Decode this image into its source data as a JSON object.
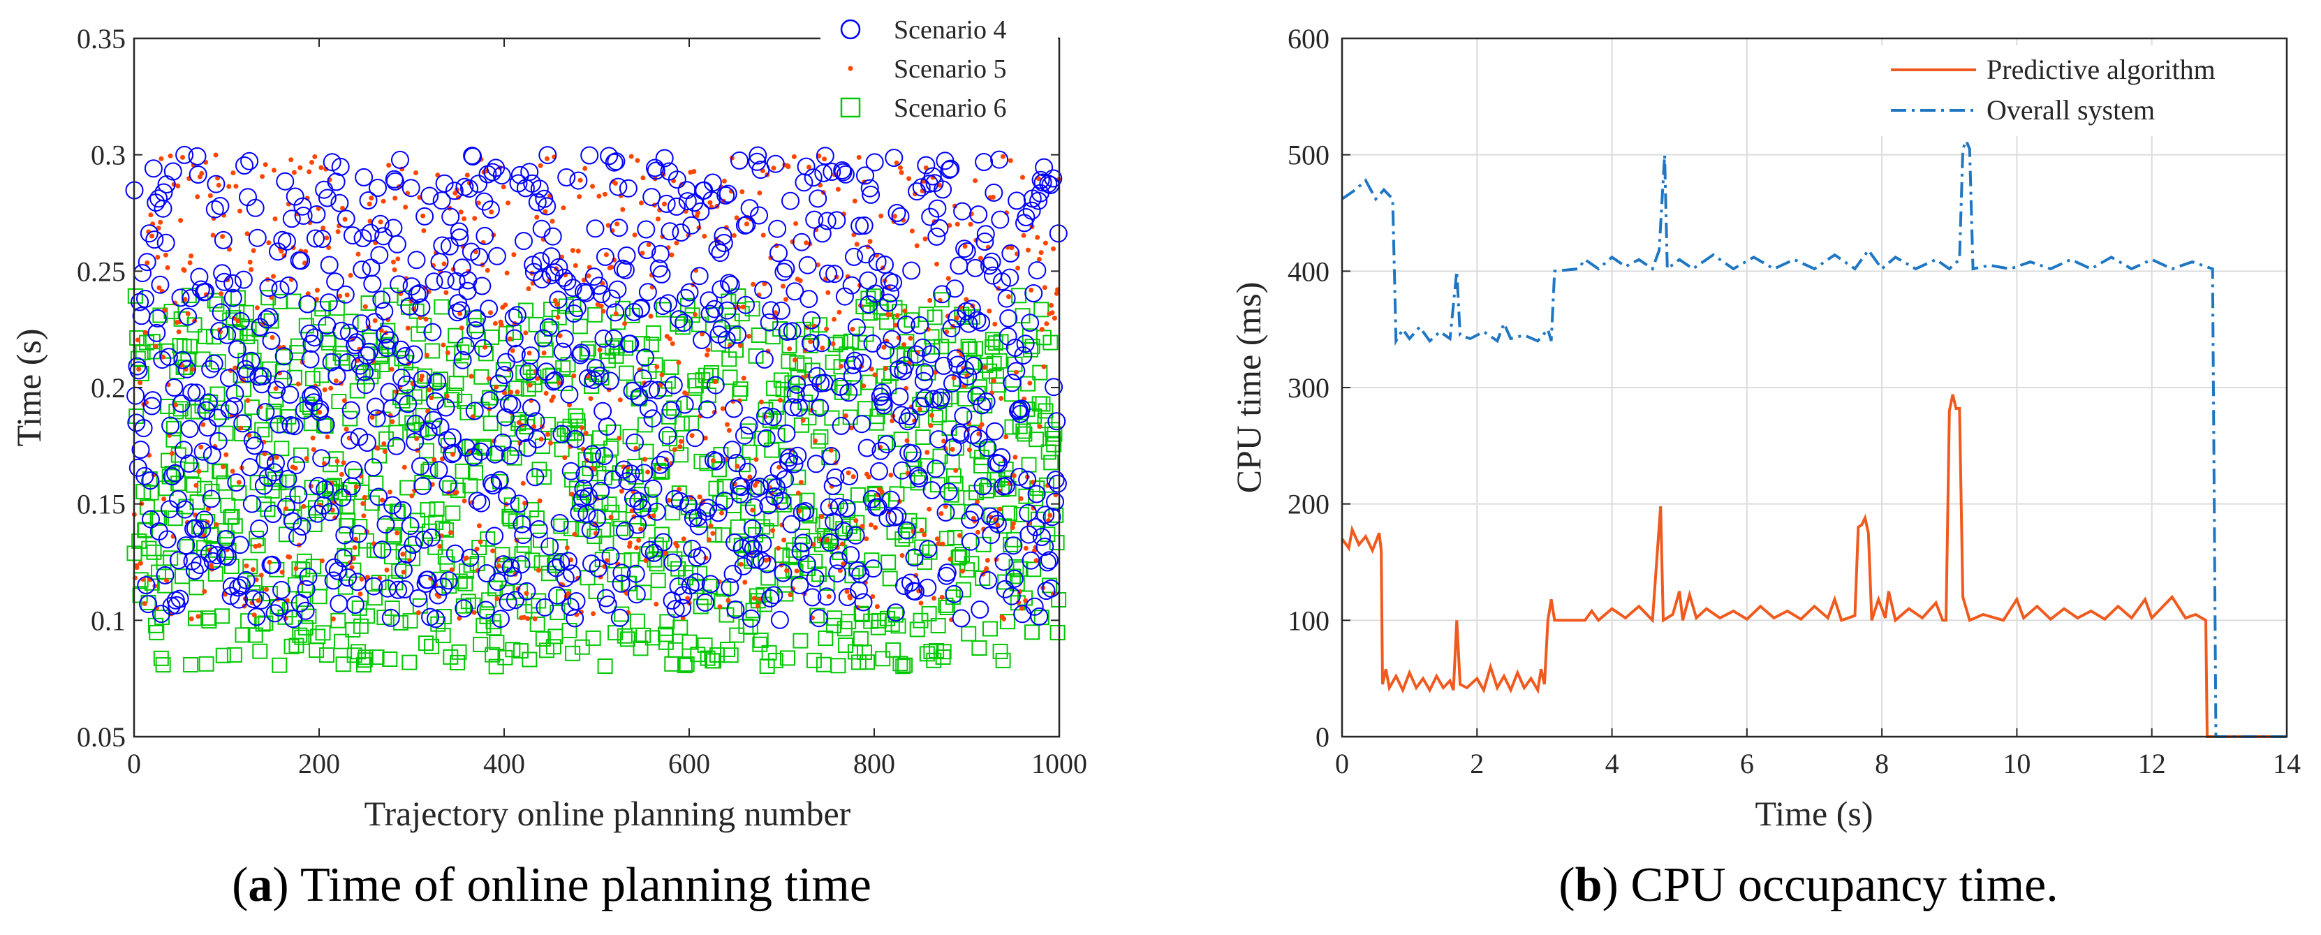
{
  "captions": {
    "a": {
      "tag": "a",
      "rest": " Time of online planning time"
    },
    "b": {
      "tag": "b",
      "rest": " CPU occupancy time."
    }
  },
  "chart_data": [
    {
      "id": "a",
      "type": "scatter",
      "title": "",
      "xlabel": "Trajectory online planning number",
      "ylabel": "Time (s)",
      "xlim": [
        0,
        1000
      ],
      "ylim": [
        0.05,
        0.35
      ],
      "xticks": [
        0,
        200,
        400,
        600,
        800,
        1000
      ],
      "yticks": [
        0.05,
        0.1,
        0.15,
        0.2,
        0.25,
        0.3,
        0.35
      ],
      "grid": false,
      "legend_position": "top-right",
      "series": [
        {
          "name": "Scenario 4",
          "marker": "circle",
          "color": "#0000ff",
          "n_points": 1000,
          "x_range": [
            0,
            1000
          ],
          "y_range": [
            0.1,
            0.3
          ]
        },
        {
          "name": "Scenario 5",
          "marker": "dot",
          "color": "#ff4500",
          "n_points": 1000,
          "x_range": [
            0,
            1000
          ],
          "y_range": [
            0.1,
            0.3
          ]
        },
        {
          "name": "Scenario 6",
          "marker": "square",
          "color": "#00c800",
          "n_points": 1000,
          "x_range": [
            0,
            1000
          ],
          "y_range": [
            0.08,
            0.24
          ]
        }
      ]
    },
    {
      "id": "b",
      "type": "line",
      "title": "",
      "xlabel": "Time (s)",
      "ylabel": "CPU time (ms)",
      "xlim": [
        0,
        14
      ],
      "ylim": [
        0,
        600
      ],
      "xticks": [
        0,
        2,
        4,
        6,
        8,
        10,
        12,
        14
      ],
      "yticks": [
        0,
        100,
        200,
        300,
        400,
        500,
        600
      ],
      "grid": true,
      "legend_position": "top-right",
      "series": [
        {
          "name": "Predictive algorithm",
          "color": "#f05a1e",
          "style": "solid",
          "points": [
            [
              0,
              170
            ],
            [
              0.1,
              162
            ],
            [
              0.15,
              178
            ],
            [
              0.25,
              165
            ],
            [
              0.35,
              172
            ],
            [
              0.45,
              160
            ],
            [
              0.55,
              175
            ],
            [
              0.58,
              160
            ],
            [
              0.6,
              45
            ],
            [
              0.65,
              58
            ],
            [
              0.7,
              42
            ],
            [
              0.8,
              52
            ],
            [
              0.9,
              40
            ],
            [
              1.0,
              55
            ],
            [
              1.1,
              42
            ],
            [
              1.2,
              50
            ],
            [
              1.3,
              40
            ],
            [
              1.4,
              52
            ],
            [
              1.5,
              42
            ],
            [
              1.6,
              48
            ],
            [
              1.65,
              40
            ],
            [
              1.7,
              100
            ],
            [
              1.75,
              45
            ],
            [
              1.85,
              42
            ],
            [
              2.0,
              50
            ],
            [
              2.1,
              40
            ],
            [
              2.2,
              60
            ],
            [
              2.3,
              42
            ],
            [
              2.4,
              52
            ],
            [
              2.5,
              40
            ],
            [
              2.6,
              55
            ],
            [
              2.7,
              42
            ],
            [
              2.8,
              50
            ],
            [
              2.9,
              40
            ],
            [
              2.95,
              58
            ],
            [
              3.0,
              45
            ],
            [
              3.05,
              100
            ],
            [
              3.1,
              118
            ],
            [
              3.15,
              100
            ],
            [
              3.6,
              100
            ],
            [
              3.7,
              108
            ],
            [
              3.8,
              100
            ],
            [
              4.0,
              110
            ],
            [
              4.2,
              102
            ],
            [
              4.4,
              112
            ],
            [
              4.6,
              100
            ],
            [
              4.72,
              198
            ],
            [
              4.76,
              100
            ],
            [
              4.9,
              105
            ],
            [
              5.0,
              125
            ],
            [
              5.05,
              100
            ],
            [
              5.15,
              122
            ],
            [
              5.25,
              102
            ],
            [
              5.4,
              110
            ],
            [
              5.6,
              102
            ],
            [
              5.8,
              108
            ],
            [
              6.0,
              101
            ],
            [
              6.2,
              112
            ],
            [
              6.4,
              102
            ],
            [
              6.6,
              108
            ],
            [
              6.8,
              101
            ],
            [
              7.0,
              112
            ],
            [
              7.2,
              102
            ],
            [
              7.3,
              118
            ],
            [
              7.4,
              100
            ],
            [
              7.6,
              104
            ],
            [
              7.65,
              180
            ],
            [
              7.7,
              182
            ],
            [
              7.75,
              188
            ],
            [
              7.8,
              175
            ],
            [
              7.85,
              100
            ],
            [
              7.95,
              118
            ],
            [
              8.05,
              102
            ],
            [
              8.1,
              125
            ],
            [
              8.2,
              100
            ],
            [
              8.4,
              110
            ],
            [
              8.6,
              102
            ],
            [
              8.8,
              115
            ],
            [
              8.9,
              100
            ],
            [
              8.95,
              100
            ],
            [
              9.0,
              280
            ],
            [
              9.05,
              294
            ],
            [
              9.1,
              282
            ],
            [
              9.15,
              282
            ],
            [
              9.2,
              120
            ],
            [
              9.3,
              100
            ],
            [
              9.5,
              105
            ],
            [
              9.8,
              100
            ],
            [
              10.0,
              118
            ],
            [
              10.1,
              102
            ],
            [
              10.3,
              112
            ],
            [
              10.5,
              101
            ],
            [
              10.7,
              110
            ],
            [
              10.9,
              102
            ],
            [
              11.1,
              108
            ],
            [
              11.3,
              101
            ],
            [
              11.5,
              112
            ],
            [
              11.7,
              102
            ],
            [
              11.9,
              118
            ],
            [
              12.0,
              102
            ],
            [
              12.3,
              120
            ],
            [
              12.5,
              102
            ],
            [
              12.65,
              105
            ],
            [
              12.8,
              100
            ],
            [
              12.82,
              0
            ],
            [
              14,
              0
            ]
          ]
        },
        {
          "name": "Overall system",
          "color": "#1f77c4",
          "style": "dashdot",
          "points": [
            [
              0,
              462
            ],
            [
              0.2,
              470
            ],
            [
              0.35,
              478
            ],
            [
              0.5,
              462
            ],
            [
              0.62,
              470
            ],
            [
              0.75,
              462
            ],
            [
              0.8,
              340
            ],
            [
              0.9,
              350
            ],
            [
              1.0,
              342
            ],
            [
              1.15,
              352
            ],
            [
              1.3,
              340
            ],
            [
              1.45,
              348
            ],
            [
              1.6,
              342
            ],
            [
              1.7,
              400
            ],
            [
              1.75,
              345
            ],
            [
              1.9,
              342
            ],
            [
              2.1,
              348
            ],
            [
              2.3,
              340
            ],
            [
              2.4,
              355
            ],
            [
              2.5,
              342
            ],
            [
              2.7,
              345
            ],
            [
              2.9,
              340
            ],
            [
              3.05,
              350
            ],
            [
              3.1,
              340
            ],
            [
              3.15,
              400
            ],
            [
              3.5,
              402
            ],
            [
              3.6,
              410
            ],
            [
              3.8,
              402
            ],
            [
              4.0,
              412
            ],
            [
              4.2,
              404
            ],
            [
              4.4,
              410
            ],
            [
              4.6,
              402
            ],
            [
              4.7,
              418
            ],
            [
              4.78,
              500
            ],
            [
              4.82,
              402
            ],
            [
              5.0,
              410
            ],
            [
              5.2,
              402
            ],
            [
              5.5,
              414
            ],
            [
              5.8,
              402
            ],
            [
              6.1,
              412
            ],
            [
              6.4,
              402
            ],
            [
              6.7,
              410
            ],
            [
              7.0,
              402
            ],
            [
              7.3,
              414
            ],
            [
              7.6,
              402
            ],
            [
              7.8,
              418
            ],
            [
              8.0,
              402
            ],
            [
              8.2,
              412
            ],
            [
              8.5,
              402
            ],
            [
              8.8,
              410
            ],
            [
              9.0,
              402
            ],
            [
              9.15,
              410
            ],
            [
              9.2,
              505
            ],
            [
              9.25,
              512
            ],
            [
              9.3,
              505
            ],
            [
              9.35,
              402
            ],
            [
              9.6,
              405
            ],
            [
              9.9,
              402
            ],
            [
              10.2,
              408
            ],
            [
              10.5,
              402
            ],
            [
              10.8,
              410
            ],
            [
              11.1,
              402
            ],
            [
              11.4,
              412
            ],
            [
              11.7,
              402
            ],
            [
              12.0,
              410
            ],
            [
              12.3,
              402
            ],
            [
              12.6,
              408
            ],
            [
              12.9,
              402
            ],
            [
              12.95,
              0
            ],
            [
              14,
              0
            ]
          ]
        }
      ]
    }
  ]
}
